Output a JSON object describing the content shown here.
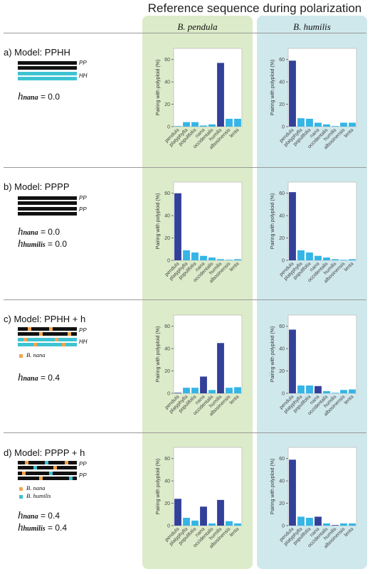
{
  "header": {
    "title": "Reference sequence during polarization"
  },
  "columns": [
    {
      "label": "B. pendula"
    },
    {
      "label": "B. humilis"
    }
  ],
  "colors": {
    "dark_bar": "#33409a",
    "light_bar": "#34b5e6",
    "col_pendula_bg": "#dcebc9",
    "col_humilis_bg": "#cfe8ec",
    "pp_chrom": "#111111",
    "hh_chrom": "#3ec3d2",
    "nana_seg": "#f5a44c",
    "humilis_seg": "#3ec3d2"
  },
  "models": [
    {
      "title": "a) Model: PPHH",
      "chrom_labels": [
        "PP",
        "HH"
      ],
      "legend": [],
      "h_values": [
        {
          "sub": "nana",
          "value": "= 0.0"
        }
      ]
    },
    {
      "title": "b) Model: PPPP",
      "chrom_labels": [
        "PP",
        "PP"
      ],
      "legend": [],
      "h_values": [
        {
          "sub": "nana",
          "value": "= 0.0"
        },
        {
          "sub": "humilis",
          "value": "= 0.0"
        }
      ]
    },
    {
      "title": "c) Model: PPHH + h",
      "chrom_labels": [
        "PP",
        "HH"
      ],
      "legend": [
        "B. nana"
      ],
      "h_values": [
        {
          "sub": "nana",
          "value": "= 0.4"
        }
      ]
    },
    {
      "title": "d) Model: PPPP + h",
      "chrom_labels": [
        "PP",
        "PP"
      ],
      "legend": [
        "B. nana",
        "B. humilis"
      ],
      "h_values": [
        {
          "sub": "nana",
          "value": "= 0.4"
        },
        {
          "sub": "humilis",
          "value": "= 0.4"
        }
      ]
    }
  ],
  "chart_data": [
    {
      "type": "bar",
      "panel": "a",
      "reference": "B. pendula",
      "categories": [
        "pendula",
        "platyphylla",
        "populifolia",
        "nana",
        "occidentalis",
        "humilis",
        "albosinensis",
        "lenta"
      ],
      "values": [
        0.5,
        4,
        4,
        1,
        2,
        57,
        7,
        7
      ],
      "highlight": [
        false,
        false,
        false,
        false,
        false,
        true,
        false,
        false
      ],
      "ylabel": "Pairing with polyploid (%)",
      "ylim": [
        0,
        70
      ],
      "yticks": [
        0,
        20,
        40,
        60
      ]
    },
    {
      "type": "bar",
      "panel": "a",
      "reference": "B. humilis",
      "categories": [
        "pendula",
        "platyphylla",
        "populifolia",
        "nana",
        "occidentalis",
        "humilis",
        "albosinensis",
        "lenta"
      ],
      "values": [
        59,
        7.5,
        7,
        3.5,
        2,
        0.5,
        3.5,
        3.5
      ],
      "highlight": [
        true,
        false,
        false,
        false,
        false,
        false,
        false,
        false
      ],
      "ylabel": "Pairing with polyploid (%)",
      "ylim": [
        0,
        70
      ],
      "yticks": [
        0,
        20,
        40,
        60
      ]
    },
    {
      "type": "bar",
      "panel": "b",
      "reference": "B. pendula",
      "categories": [
        "pendula",
        "platyphylla",
        "populifolia",
        "nana",
        "occidentalis",
        "humilis",
        "albosinensis",
        "lenta"
      ],
      "values": [
        60,
        9,
        7,
        4,
        2.5,
        1,
        0.5,
        1
      ],
      "highlight": [
        true,
        false,
        false,
        false,
        false,
        false,
        false,
        false
      ],
      "ylabel": "Pairing with polyploid (%)",
      "ylim": [
        0,
        70
      ],
      "yticks": [
        0,
        20,
        40,
        60
      ]
    },
    {
      "type": "bar",
      "panel": "b",
      "reference": "B. humilis",
      "categories": [
        "pendula",
        "platyphylla",
        "populifolia",
        "nana",
        "occidentalis",
        "humilis",
        "albosinensis",
        "lenta"
      ],
      "values": [
        61,
        9,
        7,
        4,
        2.5,
        1,
        0.5,
        1
      ],
      "highlight": [
        true,
        false,
        false,
        false,
        false,
        false,
        false,
        false
      ],
      "ylabel": "Pairing with polyploid (%)",
      "ylim": [
        0,
        70
      ],
      "yticks": [
        0,
        20,
        40,
        60
      ]
    },
    {
      "type": "bar",
      "panel": "c",
      "reference": "B. pendula",
      "categories": [
        "pendula",
        "platyphylla",
        "populifolia",
        "nana",
        "occidentalis",
        "humilis",
        "albosinensis",
        "lenta"
      ],
      "values": [
        0.5,
        5,
        5,
        15,
        3,
        45,
        5,
        5.5
      ],
      "highlight": [
        true,
        false,
        false,
        true,
        false,
        true,
        false,
        false
      ],
      "ylabel": "Pairing with polyploid (%)",
      "ylim": [
        0,
        70
      ],
      "yticks": [
        0,
        20,
        40,
        60
      ]
    },
    {
      "type": "bar",
      "panel": "c",
      "reference": "B. humilis",
      "categories": [
        "pendula",
        "platyphylla",
        "populifolia",
        "nana",
        "occidentalis",
        "humilis",
        "albosinensis",
        "lenta"
      ],
      "values": [
        57,
        7,
        7,
        6.5,
        2,
        0.5,
        3,
        3.5
      ],
      "highlight": [
        true,
        false,
        false,
        true,
        false,
        false,
        false,
        false
      ],
      "ylabel": "Pairing with polyploid (%)",
      "ylim": [
        0,
        70
      ],
      "yticks": [
        0,
        20,
        40,
        60
      ]
    },
    {
      "type": "bar",
      "panel": "d",
      "reference": "B. pendula",
      "categories": [
        "pendula",
        "platyphylla",
        "populifolia",
        "nana",
        "occidentalis",
        "humilis",
        "albosinensis",
        "lenta"
      ],
      "values": [
        24,
        7,
        4.5,
        17,
        2,
        23,
        4,
        2
      ],
      "highlight": [
        true,
        false,
        false,
        true,
        false,
        true,
        false,
        false
      ],
      "ylabel": "Pairing with polyploid (%)",
      "ylim": [
        0,
        70
      ],
      "yticks": [
        0,
        20,
        40,
        60
      ]
    },
    {
      "type": "bar",
      "panel": "d",
      "reference": "B. humilis",
      "categories": [
        "pendula",
        "platyphylla",
        "populifolia",
        "nana",
        "occidentalis",
        "humilis",
        "albosinensis",
        "lenta"
      ],
      "values": [
        59,
        8,
        7,
        8,
        2,
        0.5,
        2,
        2
      ],
      "highlight": [
        true,
        false,
        false,
        true,
        false,
        true,
        false,
        false
      ],
      "ylabel": "Pairing with polyploid (%)",
      "ylim": [
        0,
        70
      ],
      "yticks": [
        0,
        20,
        40,
        60
      ]
    }
  ]
}
